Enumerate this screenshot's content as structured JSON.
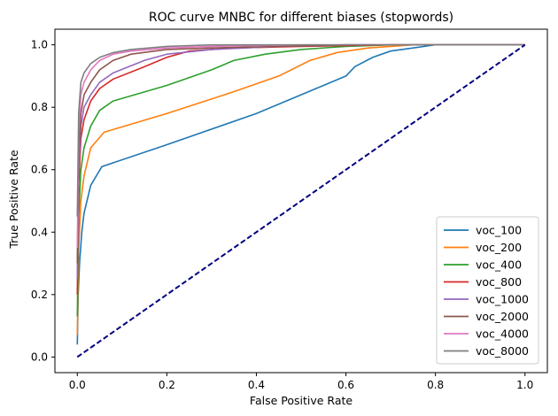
{
  "chart_data": {
    "type": "line",
    "title": "ROC curve MNBC for different biases (stopwords)",
    "xlabel": "False Positive Rate",
    "ylabel": "True Positive Rate",
    "xlim": [
      -0.05,
      1.05
    ],
    "ylim": [
      -0.05,
      1.05
    ],
    "xticks": [
      0.0,
      0.2,
      0.4,
      0.6,
      0.8,
      1.0
    ],
    "yticks": [
      0.0,
      0.2,
      0.4,
      0.6,
      0.8,
      1.0
    ],
    "tick_labels_x": [
      "0.0",
      "0.2",
      "0.4",
      "0.6",
      "0.8",
      "1.0"
    ],
    "tick_labels_y": [
      "0.0",
      "0.2",
      "0.4",
      "0.6",
      "0.8",
      "1.0"
    ],
    "grid": false,
    "legend_position": "lower-right",
    "series": [
      {
        "name": "voc_100",
        "color": "#1f77b4",
        "points": [
          [
            0,
            0.04
          ],
          [
            0.002,
            0.2
          ],
          [
            0.005,
            0.3
          ],
          [
            0.01,
            0.4
          ],
          [
            0.015,
            0.46
          ],
          [
            0.03,
            0.55
          ],
          [
            0.055,
            0.61
          ],
          [
            0.2,
            0.68
          ],
          [
            0.4,
            0.78
          ],
          [
            0.6,
            0.9
          ],
          [
            0.62,
            0.93
          ],
          [
            0.66,
            0.96
          ],
          [
            0.7,
            0.98
          ],
          [
            0.75,
            0.99
          ],
          [
            0.8,
            1.0
          ],
          [
            0.9,
            1.0
          ],
          [
            1.0,
            1.0
          ]
        ]
      },
      {
        "name": "voc_200",
        "color": "#ff7f0e",
        "points": [
          [
            0,
            0.07
          ],
          [
            0.003,
            0.35
          ],
          [
            0.008,
            0.5
          ],
          [
            0.015,
            0.58
          ],
          [
            0.03,
            0.67
          ],
          [
            0.06,
            0.72
          ],
          [
            0.2,
            0.78
          ],
          [
            0.35,
            0.85
          ],
          [
            0.45,
            0.9
          ],
          [
            0.52,
            0.95
          ],
          [
            0.58,
            0.975
          ],
          [
            0.65,
            0.99
          ],
          [
            0.75,
            1.0
          ],
          [
            0.9,
            1.0
          ],
          [
            1.0,
            1.0
          ]
        ]
      },
      {
        "name": "voc_400",
        "color": "#2ca02c",
        "points": [
          [
            0,
            0.13
          ],
          [
            0.003,
            0.45
          ],
          [
            0.008,
            0.6
          ],
          [
            0.015,
            0.67
          ],
          [
            0.03,
            0.74
          ],
          [
            0.05,
            0.79
          ],
          [
            0.08,
            0.82
          ],
          [
            0.2,
            0.87
          ],
          [
            0.3,
            0.92
          ],
          [
            0.35,
            0.95
          ],
          [
            0.42,
            0.97
          ],
          [
            0.5,
            0.985
          ],
          [
            0.6,
            0.995
          ],
          [
            0.7,
            1.0
          ],
          [
            0.85,
            1.0
          ],
          [
            1.0,
            1.0
          ]
        ]
      },
      {
        "name": "voc_800",
        "color": "#d62728",
        "points": [
          [
            0,
            0.2
          ],
          [
            0.003,
            0.55
          ],
          [
            0.008,
            0.7
          ],
          [
            0.015,
            0.76
          ],
          [
            0.03,
            0.82
          ],
          [
            0.05,
            0.86
          ],
          [
            0.08,
            0.89
          ],
          [
            0.15,
            0.93
          ],
          [
            0.2,
            0.96
          ],
          [
            0.25,
            0.98
          ],
          [
            0.35,
            0.99
          ],
          [
            0.5,
            0.995
          ],
          [
            0.7,
            1.0
          ],
          [
            0.85,
            1.0
          ],
          [
            1.0,
            1.0
          ]
        ]
      },
      {
        "name": "voc_1000",
        "color": "#9467bd",
        "points": [
          [
            0,
            0.25
          ],
          [
            0.003,
            0.6
          ],
          [
            0.008,
            0.74
          ],
          [
            0.015,
            0.8
          ],
          [
            0.03,
            0.84
          ],
          [
            0.05,
            0.88
          ],
          [
            0.08,
            0.91
          ],
          [
            0.15,
            0.95
          ],
          [
            0.2,
            0.97
          ],
          [
            0.3,
            0.985
          ],
          [
            0.45,
            0.995
          ],
          [
            0.6,
            1.0
          ],
          [
            0.8,
            1.0
          ],
          [
            1.0,
            1.0
          ]
        ]
      },
      {
        "name": "voc_2000",
        "color": "#8c564b",
        "points": [
          [
            0,
            0.3
          ],
          [
            0.003,
            0.65
          ],
          [
            0.008,
            0.78
          ],
          [
            0.015,
            0.84
          ],
          [
            0.03,
            0.88
          ],
          [
            0.05,
            0.92
          ],
          [
            0.08,
            0.95
          ],
          [
            0.12,
            0.97
          ],
          [
            0.2,
            0.985
          ],
          [
            0.3,
            0.99
          ],
          [
            0.45,
            0.995
          ],
          [
            0.6,
            1.0
          ],
          [
            0.8,
            1.0
          ],
          [
            1.0,
            1.0
          ]
        ]
      },
      {
        "name": "voc_4000",
        "color": "#e377c2",
        "points": [
          [
            0,
            0.35
          ],
          [
            0.003,
            0.72
          ],
          [
            0.008,
            0.84
          ],
          [
            0.015,
            0.88
          ],
          [
            0.03,
            0.92
          ],
          [
            0.05,
            0.95
          ],
          [
            0.08,
            0.97
          ],
          [
            0.12,
            0.98
          ],
          [
            0.2,
            0.99
          ],
          [
            0.3,
            0.995
          ],
          [
            0.5,
            1.0
          ],
          [
            0.7,
            1.0
          ],
          [
            1.0,
            1.0
          ]
        ]
      },
      {
        "name": "voc_8000",
        "color": "#7f7f7f",
        "points": [
          [
            0,
            0.45
          ],
          [
            0.003,
            0.78
          ],
          [
            0.008,
            0.88
          ],
          [
            0.015,
            0.91
          ],
          [
            0.03,
            0.94
          ],
          [
            0.05,
            0.96
          ],
          [
            0.08,
            0.975
          ],
          [
            0.12,
            0.985
          ],
          [
            0.2,
            0.995
          ],
          [
            0.3,
            1.0
          ],
          [
            0.5,
            1.0
          ],
          [
            0.7,
            1.0
          ],
          [
            1.0,
            1.0
          ]
        ]
      }
    ],
    "reference_line": {
      "color": "#000080",
      "style": "dashed",
      "points": [
        [
          0,
          0
        ],
        [
          1,
          1
        ]
      ]
    }
  }
}
